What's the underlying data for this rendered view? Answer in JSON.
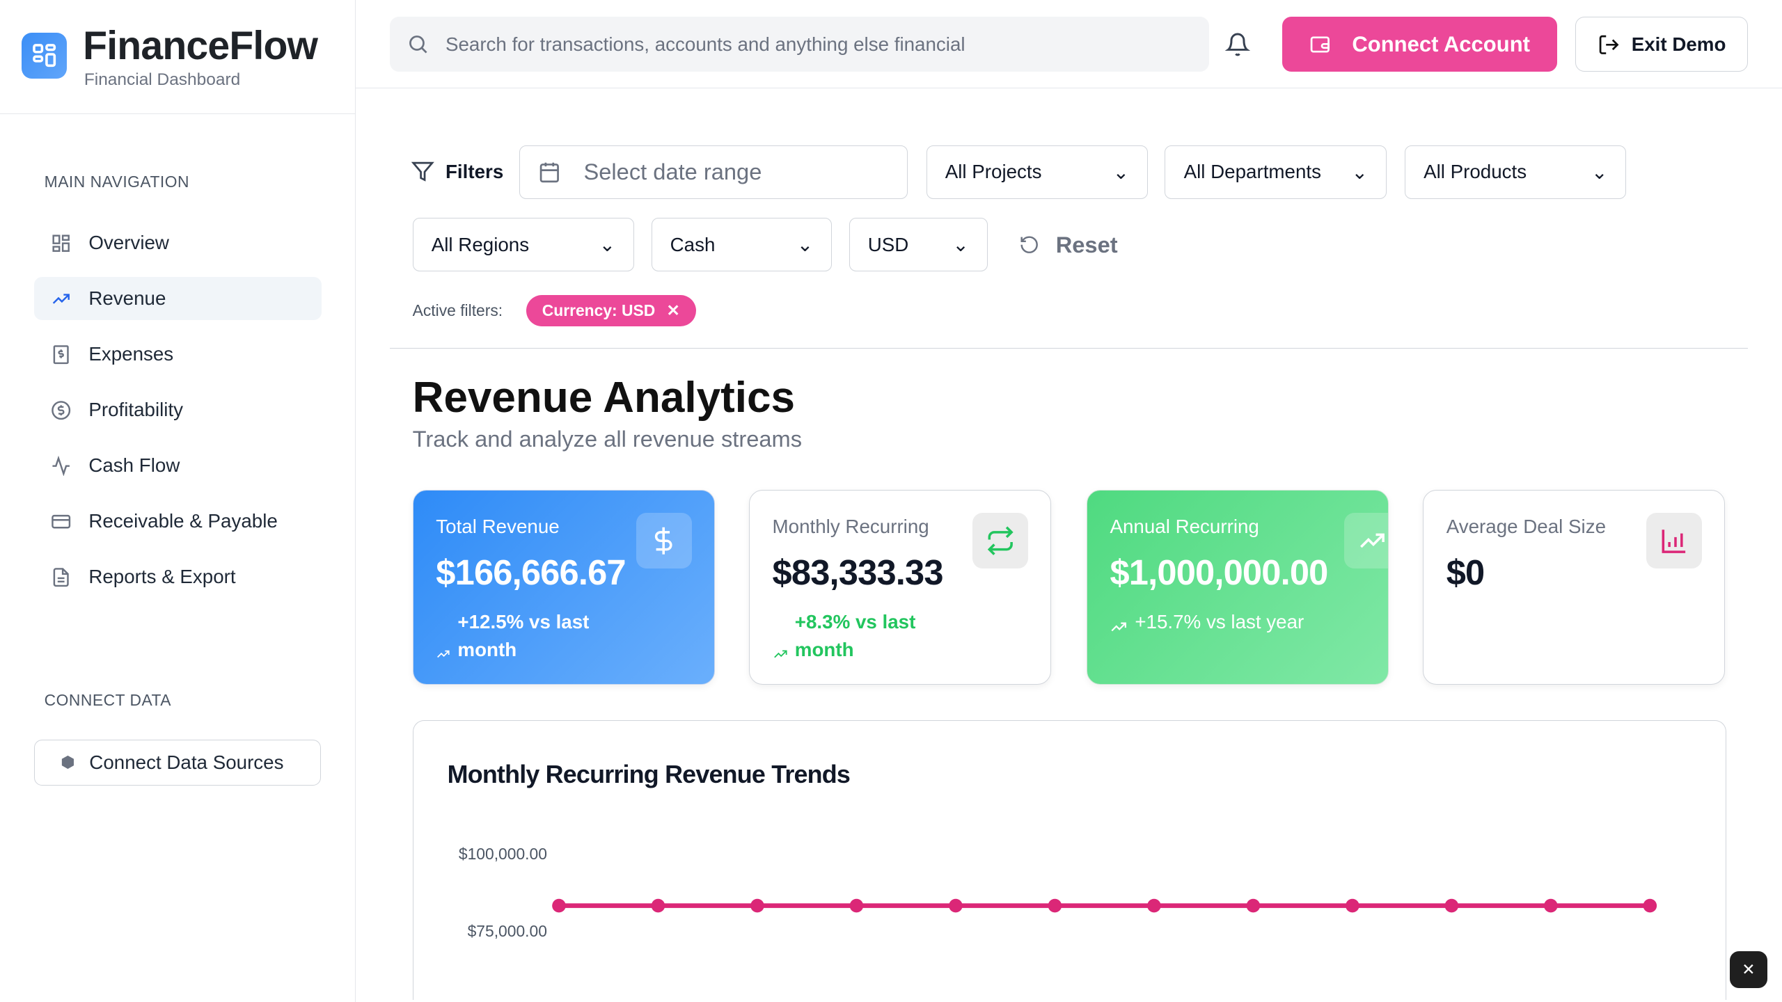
{
  "brand": {
    "name": "FinanceFlow",
    "subtitle": "Financial Dashboard"
  },
  "sidebar": {
    "section_main": "MAIN NAVIGATION",
    "items": [
      {
        "label": "Overview",
        "icon": "grid-icon"
      },
      {
        "label": "Revenue",
        "icon": "trending-up-icon",
        "active": true
      },
      {
        "label": "Expenses",
        "icon": "receipt-icon"
      },
      {
        "label": "Profitability",
        "icon": "dollar-circle-icon"
      },
      {
        "label": "Cash Flow",
        "icon": "activity-icon"
      },
      {
        "label": "Receivable & Payable",
        "icon": "credit-card-icon"
      },
      {
        "label": "Reports & Export",
        "icon": "file-icon"
      }
    ],
    "section_connect": "CONNECT DATA",
    "connect_button": "Connect Data Sources"
  },
  "header": {
    "search_placeholder": "Search for transactions, accounts and anything else financial",
    "connect_account": "Connect Account",
    "exit_demo": "Exit Demo"
  },
  "filters": {
    "label": "Filters",
    "date_placeholder": "Select date range",
    "projects": "All Projects",
    "departments": "All Departments",
    "products": "All Products",
    "regions": "All Regions",
    "basis": "Cash",
    "currency": "USD",
    "reset": "Reset",
    "active_label": "Active filters:",
    "active_chip": "Currency: USD"
  },
  "page": {
    "title": "Revenue Analytics",
    "subtitle": "Track and analyze all revenue streams"
  },
  "cards": [
    {
      "label": "Total Revenue",
      "value": "$166,666.67",
      "change": "+12.5% vs last month",
      "icon": "dollar-icon"
    },
    {
      "label": "Monthly Recurring",
      "value": "$83,333.33",
      "change": "+8.3% vs last month",
      "icon": "repeat-icon"
    },
    {
      "label": "Annual Recurring",
      "value": "$1,000,000.00",
      "change": "+15.7% vs last year",
      "icon": "trending-up-icon"
    },
    {
      "label": "Average Deal Size",
      "value": "$0",
      "icon": "bar-chart-icon"
    }
  ],
  "colors": {
    "accent": "#ec4899",
    "blue": "#3b8ef6",
    "green": "#4ade80",
    "positive": "#22c55e"
  },
  "chart_data": {
    "type": "line",
    "title": "Monthly Recurring Revenue Trends",
    "y_ticks": [
      "$100,000.00",
      "$75,000.00"
    ],
    "y_tick_values": [
      100000,
      75000
    ],
    "values": [
      83333.33,
      83333.33,
      83333.33,
      83333.33,
      83333.33,
      83333.33,
      83333.33,
      83333.33,
      83333.33,
      83333.33,
      83333.33,
      83333.33
    ],
    "color": "#db2777"
  }
}
